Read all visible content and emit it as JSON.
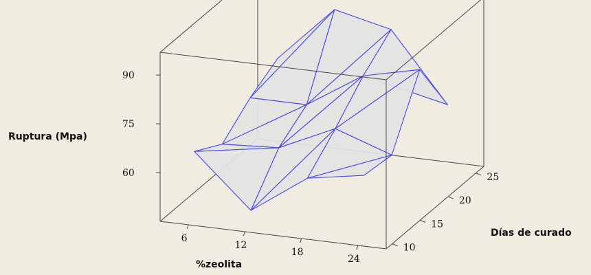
{
  "chart_data": {
    "type": "surface",
    "title": "",
    "xlabel": "%zeolita",
    "ylabel": "Días de curado",
    "zlabel": "Ruptura (Mpa)",
    "x_ticks": [
      "6",
      "12",
      "18",
      "24"
    ],
    "y_ticks": [
      "10",
      "15",
      "20",
      "25"
    ],
    "z_ticks": [
      "60",
      "75",
      "90"
    ],
    "x_levels": [
      6,
      12,
      18,
      24
    ],
    "y_levels": [
      7,
      14,
      21,
      28
    ],
    "z_values": [
      [
        66,
        61,
        68,
        73
      ],
      [
        50,
        62,
        68,
        90
      ],
      [
        62,
        70,
        79,
        86
      ],
      [
        65,
        64,
        83,
        65
      ]
    ],
    "surface_colors": {
      "fill": "#e3e3e3",
      "mesh": "#4646ee"
    },
    "background": "#f1ece2"
  }
}
